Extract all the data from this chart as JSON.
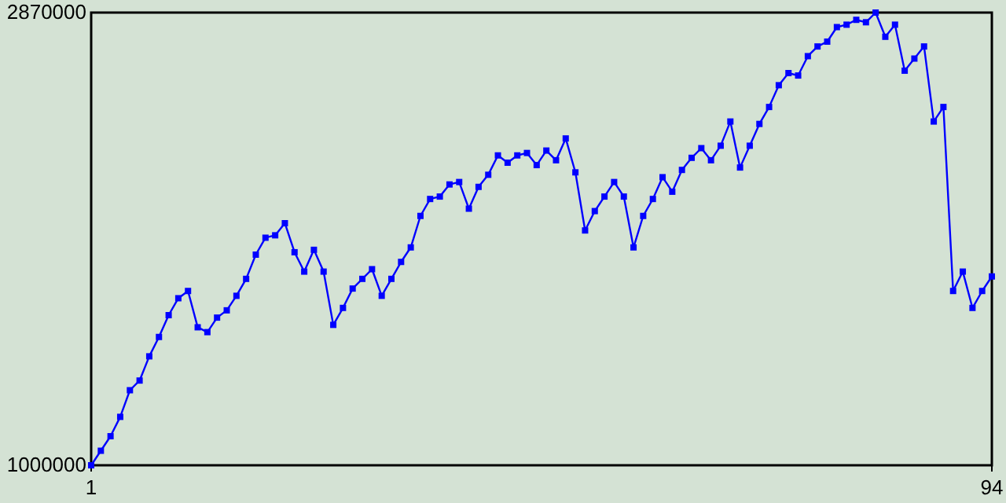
{
  "chart_data": {
    "type": "line",
    "x": [
      1,
      2,
      3,
      4,
      5,
      6,
      7,
      8,
      9,
      10,
      11,
      12,
      13,
      14,
      15,
      16,
      17,
      18,
      19,
      20,
      21,
      22,
      23,
      24,
      25,
      26,
      27,
      28,
      29,
      30,
      31,
      32,
      33,
      34,
      35,
      36,
      37,
      38,
      39,
      40,
      41,
      42,
      43,
      44,
      45,
      46,
      47,
      48,
      49,
      50,
      51,
      52,
      53,
      54,
      55,
      56,
      57,
      58,
      59,
      60,
      61,
      62,
      63,
      64,
      65,
      66,
      67,
      68,
      69,
      70,
      71,
      72,
      73,
      74,
      75,
      76,
      77,
      78,
      79,
      80,
      81,
      82,
      83,
      84,
      85,
      86,
      87,
      88,
      89,
      90,
      91,
      92,
      93,
      94
    ],
    "series": [
      {
        "color": "#0000ff",
        "values": [
          1000000,
          1060000,
          1120000,
          1200000,
          1310000,
          1350000,
          1450000,
          1530000,
          1620000,
          1690000,
          1720000,
          1570000,
          1550000,
          1610000,
          1640000,
          1700000,
          1770000,
          1870000,
          1940000,
          1950000,
          2000000,
          1880000,
          1800000,
          1890000,
          1800000,
          1580000,
          1650000,
          1730000,
          1770000,
          1810000,
          1700000,
          1770000,
          1840000,
          1900000,
          2030000,
          2100000,
          2110000,
          2160000,
          2170000,
          2060000,
          2150000,
          2200000,
          2280000,
          2250000,
          2280000,
          2290000,
          2240000,
          2300000,
          2260000,
          2350000,
          2210000,
          1970000,
          2050000,
          2110000,
          2170000,
          2110000,
          1900000,
          2030000,
          2100000,
          2190000,
          2130000,
          2220000,
          2270000,
          2310000,
          2260000,
          2320000,
          2420000,
          2230000,
          2320000,
          2410000,
          2480000,
          2570000,
          2620000,
          2610000,
          2690000,
          2730000,
          2750000,
          2810000,
          2820000,
          2840000,
          2830000,
          2870000,
          2770000,
          2820000,
          2630000,
          2680000,
          2730000,
          2420000,
          2480000,
          1720000,
          1800000,
          1650000,
          1720000,
          1780000
        ]
      }
    ],
    "xlim": [
      1,
      94
    ],
    "xticks": [
      1,
      94
    ],
    "ylim": [
      1000000,
      2870000
    ],
    "yticks": [
      1000000,
      2870000
    ],
    "marker": "square",
    "line_style": "solid"
  }
}
